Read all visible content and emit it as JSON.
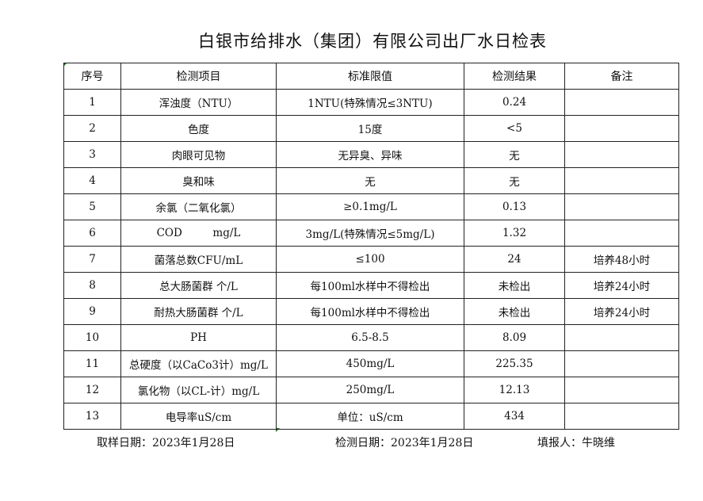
{
  "title": "白银市给排水（集团）有限公司出厂水日检表",
  "table": {
    "headers": [
      "序号",
      "检测项目",
      "标准限值",
      "检测结果",
      "备注"
    ],
    "rows": [
      [
        "1",
        "浑浊度（NTU）",
        "1NTU(特殊情况≤3NTU)",
        "0.24",
        ""
      ],
      [
        "2",
        "色度",
        "15度",
        "<5",
        ""
      ],
      [
        "3",
        "肉眼可见物",
        "无异臭、异味",
        "无",
        ""
      ],
      [
        "4",
        "臭和味",
        "无",
        "无",
        ""
      ],
      [
        "5",
        "余氯（二氧化氯）",
        "≥0.1mg/L",
        "0.13",
        ""
      ],
      [
        "6",
        "COD         mg/L",
        "3mg/L(特殊情况≤5mg/L)",
        "1.32",
        ""
      ],
      [
        "7",
        "菌落总数CFU/mL",
        "≤100",
        "24",
        "培养48小时"
      ],
      [
        "8",
        "总大肠菌群 个/L",
        "每100ml水样中不得检出",
        "未检出",
        "培养24小时"
      ],
      [
        "9",
        "耐热大肠菌群 个/L",
        "每100ml水样中不得检出",
        "未检出",
        "培养24小时"
      ],
      [
        "10",
        "PH",
        "6.5-8.5",
        "8.09",
        ""
      ],
      [
        "11",
        "总硬度（以CaCo3计）mg/L",
        "450mg/L",
        "225.35",
        ""
      ],
      [
        "12",
        "氯化物（以CL-计）mg/L",
        "250mg/L",
        "12.13",
        ""
      ],
      [
        "13",
        "电导率uS/cm",
        "单位：uS/cm",
        "434",
        ""
      ]
    ]
  },
  "footer": {
    "sample_date": "取样日期：2023年1月28日",
    "test_date": "检测日期：2023年1月28日",
    "reporter": "填报人：牛晓维"
  }
}
